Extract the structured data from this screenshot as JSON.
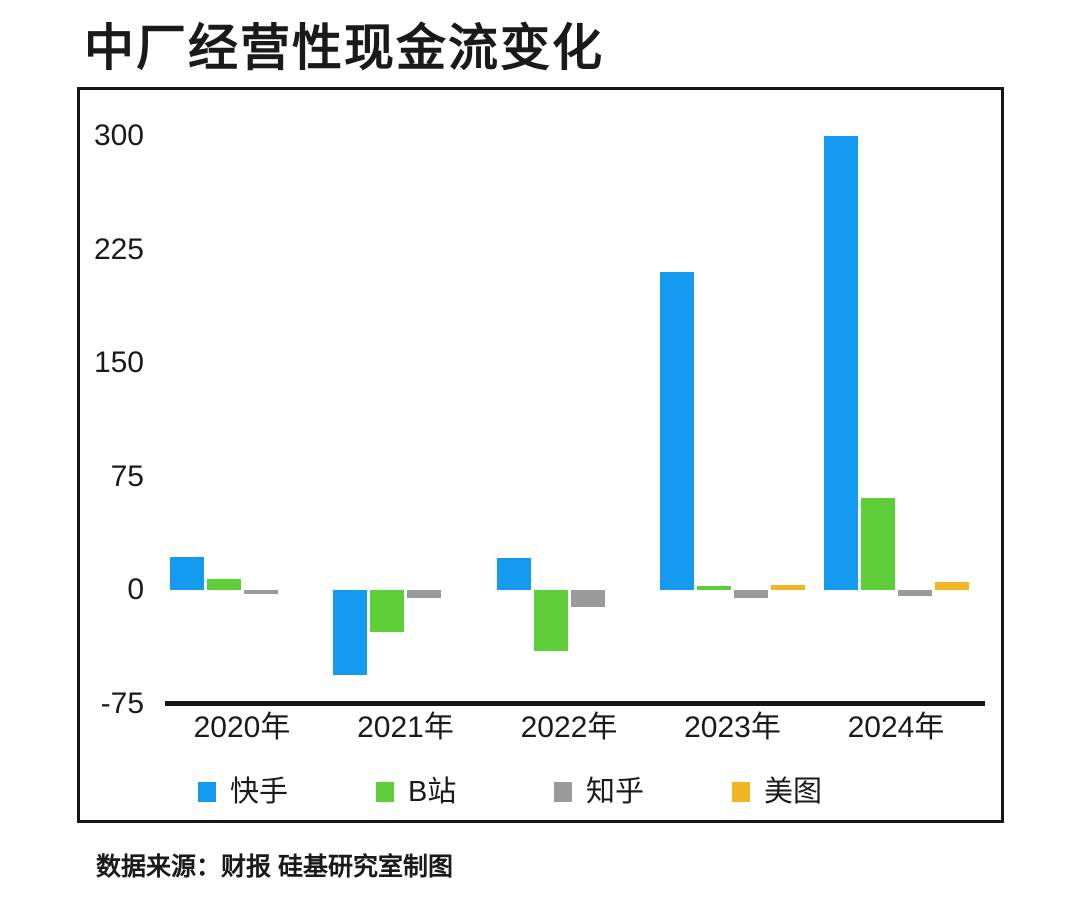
{
  "page": {
    "title": "中厂经营性现金流变化",
    "source_note": "数据来源：财报 硅基研究室制图"
  },
  "chart_data": {
    "type": "bar",
    "title": "中厂经营性现金流变化",
    "categories": [
      "2020年",
      "2021年",
      "2022年",
      "2023年",
      "2024年"
    ],
    "series": [
      {
        "name": "快手",
        "color": "#149AEE",
        "values": [
          22,
          -56,
          21,
          210,
          300
        ]
      },
      {
        "name": "B站",
        "color": "#5ECF38",
        "values": [
          7,
          -28,
          -40,
          2,
          61
        ]
      },
      {
        "name": "知乎",
        "color": "#9A9A9A",
        "values": [
          -2,
          -5,
          -11,
          -5,
          -4
        ]
      },
      {
        "name": "美图",
        "color": "#EFB525",
        "values": [
          0,
          0,
          0,
          3,
          5
        ]
      }
    ],
    "yticks": [
      300,
      225,
      150,
      75,
      0,
      -75
    ],
    "ylim": [
      -75,
      310
    ],
    "xlabel": "",
    "ylabel": "",
    "grid": false,
    "legend_position": "bottom",
    "axis_color": "#161616"
  }
}
